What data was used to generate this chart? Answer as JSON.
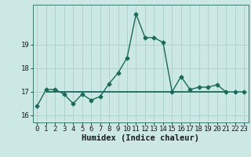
{
  "x": [
    0,
    1,
    2,
    3,
    4,
    5,
    6,
    7,
    8,
    9,
    10,
    11,
    12,
    13,
    14,
    15,
    16,
    17,
    18,
    19,
    20,
    21,
    22,
    23
  ],
  "y": [
    16.4,
    17.1,
    17.1,
    16.9,
    16.5,
    16.9,
    16.65,
    16.8,
    17.35,
    17.8,
    18.45,
    20.3,
    19.3,
    19.3,
    19.1,
    17.0,
    17.65,
    17.1,
    17.2,
    17.2,
    17.3,
    17.0,
    17.0,
    17.0
  ],
  "ref_line_y": 17.0,
  "ref_line_x_start": 1,
  "ref_line_x_end": 21,
  "line_color": "#1a6b5a",
  "bg_color": "#cce8e4",
  "grid_color": "#aacfcb",
  "xlabel": "Humidex (Indice chaleur)",
  "ylim": [
    15.7,
    20.7
  ],
  "xlim": [
    -0.5,
    23.5
  ],
  "yticks": [
    16,
    17,
    18,
    19
  ],
  "xticks": [
    0,
    1,
    2,
    3,
    4,
    5,
    6,
    7,
    8,
    9,
    10,
    11,
    12,
    13,
    14,
    15,
    16,
    17,
    18,
    19,
    20,
    21,
    22,
    23
  ],
  "marker": "D",
  "markersize": 2.5,
  "linewidth": 1.0,
  "xlabel_fontsize": 7.5,
  "tick_fontsize": 6.5
}
